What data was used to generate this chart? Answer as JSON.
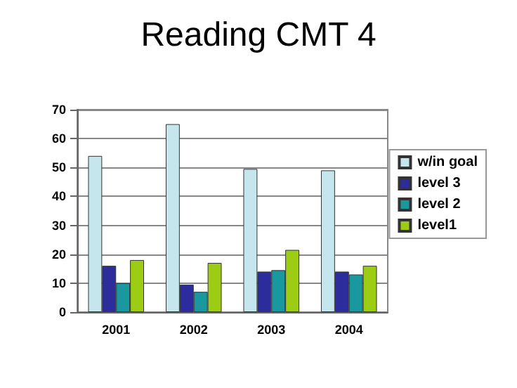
{
  "chart_data": {
    "type": "bar",
    "title": "Reading CMT 4",
    "categories": [
      "2001",
      "2002",
      "2003",
      "2004"
    ],
    "series": [
      {
        "name": "w/in goal",
        "color": "#c4e6ec",
        "values": [
          54,
          65,
          49.5,
          49
        ]
      },
      {
        "name": "level 3",
        "color": "#2c2c9c",
        "values": [
          16,
          9.5,
          14,
          14
        ]
      },
      {
        "name": "level 2",
        "color": "#1a98a0",
        "values": [
          10,
          7,
          14.5,
          13
        ]
      },
      {
        "name": "level1",
        "color": "#9ccc14",
        "values": [
          18,
          17,
          21.5,
          16
        ]
      }
    ],
    "ylim": [
      0,
      70
    ],
    "yticks": [
      0,
      10,
      20,
      30,
      40,
      50,
      60,
      70
    ],
    "grid": "y",
    "legend": "right"
  }
}
